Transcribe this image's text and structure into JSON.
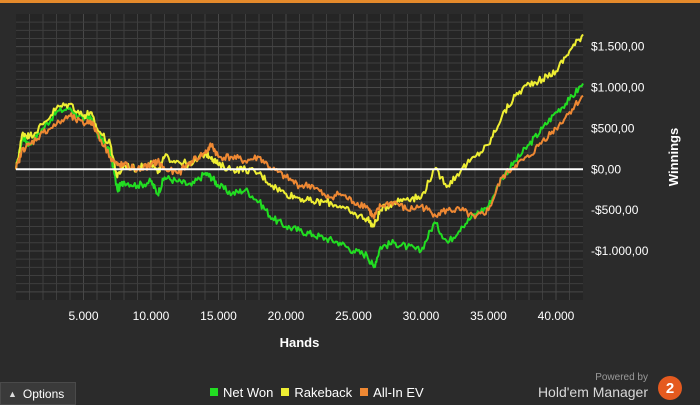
{
  "chart_data": {
    "type": "line",
    "xlabel": "Hands",
    "ylabel": "Winnings",
    "x_ticks": [
      5000,
      10000,
      15000,
      20000,
      25000,
      30000,
      35000,
      40000
    ],
    "x_tick_labels": [
      "5.000",
      "10.000",
      "15.000",
      "20.000",
      "25.000",
      "30.000",
      "35.000",
      "40.000"
    ],
    "y_ticks": [
      1500,
      1000,
      500,
      0,
      -500,
      -1000
    ],
    "y_tick_labels": [
      "$1.500,00",
      "$1.000,00",
      "$500,00",
      "$0,00",
      "-$500,00",
      "-$1.000,00"
    ],
    "xlim": [
      0,
      42000
    ],
    "ylim": [
      -1600,
      1900
    ],
    "grid": true,
    "legend_position": "bottom",
    "series": [
      {
        "name": "Net Won",
        "color": "#22dd22",
        "x": [
          0,
          500,
          1000,
          2000,
          3000,
          4000,
          5000,
          5500,
          6000,
          7000,
          7500,
          8000,
          9000,
          10000,
          10500,
          11000,
          12000,
          13000,
          14000,
          14500,
          15000,
          16000,
          17000,
          18000,
          19000,
          20000,
          21000,
          22000,
          23000,
          24000,
          25000,
          26000,
          26500,
          27000,
          28000,
          29000,
          30000,
          31000,
          32000,
          33000,
          34000,
          35000,
          36000,
          37000,
          38000,
          39000,
          40000,
          41000,
          42000
        ],
        "y": [
          0,
          400,
          300,
          500,
          700,
          750,
          600,
          650,
          450,
          200,
          -250,
          -150,
          -200,
          -150,
          -300,
          -100,
          -150,
          -200,
          -50,
          -100,
          -200,
          -300,
          -250,
          -400,
          -600,
          -700,
          -750,
          -800,
          -850,
          -900,
          -1000,
          -1050,
          -1200,
          -950,
          -900,
          -950,
          -1000,
          -650,
          -900,
          -700,
          -550,
          -450,
          -100,
          100,
          300,
          500,
          700,
          850,
          1050
        ]
      },
      {
        "name": "Rakeback",
        "color": "#eeee33",
        "x": [
          0,
          500,
          1000,
          2000,
          3000,
          4000,
          5000,
          5500,
          6000,
          7000,
          7500,
          8000,
          9000,
          10000,
          10500,
          11000,
          12000,
          13000,
          14000,
          14500,
          15000,
          16000,
          17000,
          18000,
          19000,
          20000,
          21000,
          22000,
          23000,
          24000,
          25000,
          26000,
          26500,
          27000,
          28000,
          29000,
          30000,
          31000,
          32000,
          33000,
          34000,
          35000,
          36000,
          37000,
          38000,
          39000,
          40000,
          41000,
          42000
        ],
        "y": [
          0,
          450,
          400,
          550,
          750,
          800,
          650,
          700,
          500,
          300,
          -100,
          50,
          0,
          100,
          -50,
          150,
          100,
          50,
          200,
          150,
          50,
          0,
          0,
          -50,
          -200,
          -300,
          -350,
          -400,
          -400,
          -450,
          -550,
          -600,
          -700,
          -500,
          -400,
          -350,
          -350,
          0,
          -200,
          0,
          150,
          300,
          650,
          900,
          1050,
          1100,
          1200,
          1450,
          1650
        ]
      },
      {
        "name": "All-In EV",
        "color": "#ee8833",
        "x": [
          0,
          500,
          1000,
          2000,
          3000,
          4000,
          5000,
          5500,
          6000,
          7000,
          7500,
          8000,
          9000,
          10000,
          10500,
          11000,
          12000,
          13000,
          14000,
          14500,
          15000,
          16000,
          17000,
          18000,
          19000,
          20000,
          21000,
          22000,
          23000,
          24000,
          25000,
          26000,
          26500,
          27000,
          28000,
          29000,
          30000,
          31000,
          32000,
          33000,
          34000,
          35000,
          36000,
          37000,
          38000,
          39000,
          40000,
          41000,
          42000
        ],
        "y": [
          0,
          250,
          300,
          450,
          550,
          650,
          550,
          600,
          450,
          150,
          50,
          50,
          0,
          50,
          100,
          0,
          -50,
          100,
          200,
          300,
          150,
          150,
          100,
          150,
          0,
          -100,
          -200,
          -200,
          -350,
          -300,
          -400,
          -450,
          -600,
          -450,
          -400,
          -500,
          -450,
          -550,
          -500,
          -500,
          -600,
          -500,
          -100,
          50,
          150,
          350,
          500,
          700,
          900
        ]
      }
    ]
  },
  "legend": {
    "items": [
      {
        "label": "Net Won",
        "color": "#22dd22"
      },
      {
        "label": "Rakeback",
        "color": "#eeee33"
      },
      {
        "label": "All-In EV",
        "color": "#ee8833"
      }
    ]
  },
  "controls": {
    "options_label": "Options",
    "options_icon": "chevron-up-icon"
  },
  "brand": {
    "powered_by": "Powered by",
    "name": "Hold'em Manager",
    "logo_text": "2",
    "logo_color": "#e55a1f"
  },
  "colors": {
    "background": "#2b2b2b",
    "plot_background": "#252525",
    "grid": "#3e3e3e",
    "zero_line": "#ffffff",
    "accent": "#e58a2b"
  }
}
